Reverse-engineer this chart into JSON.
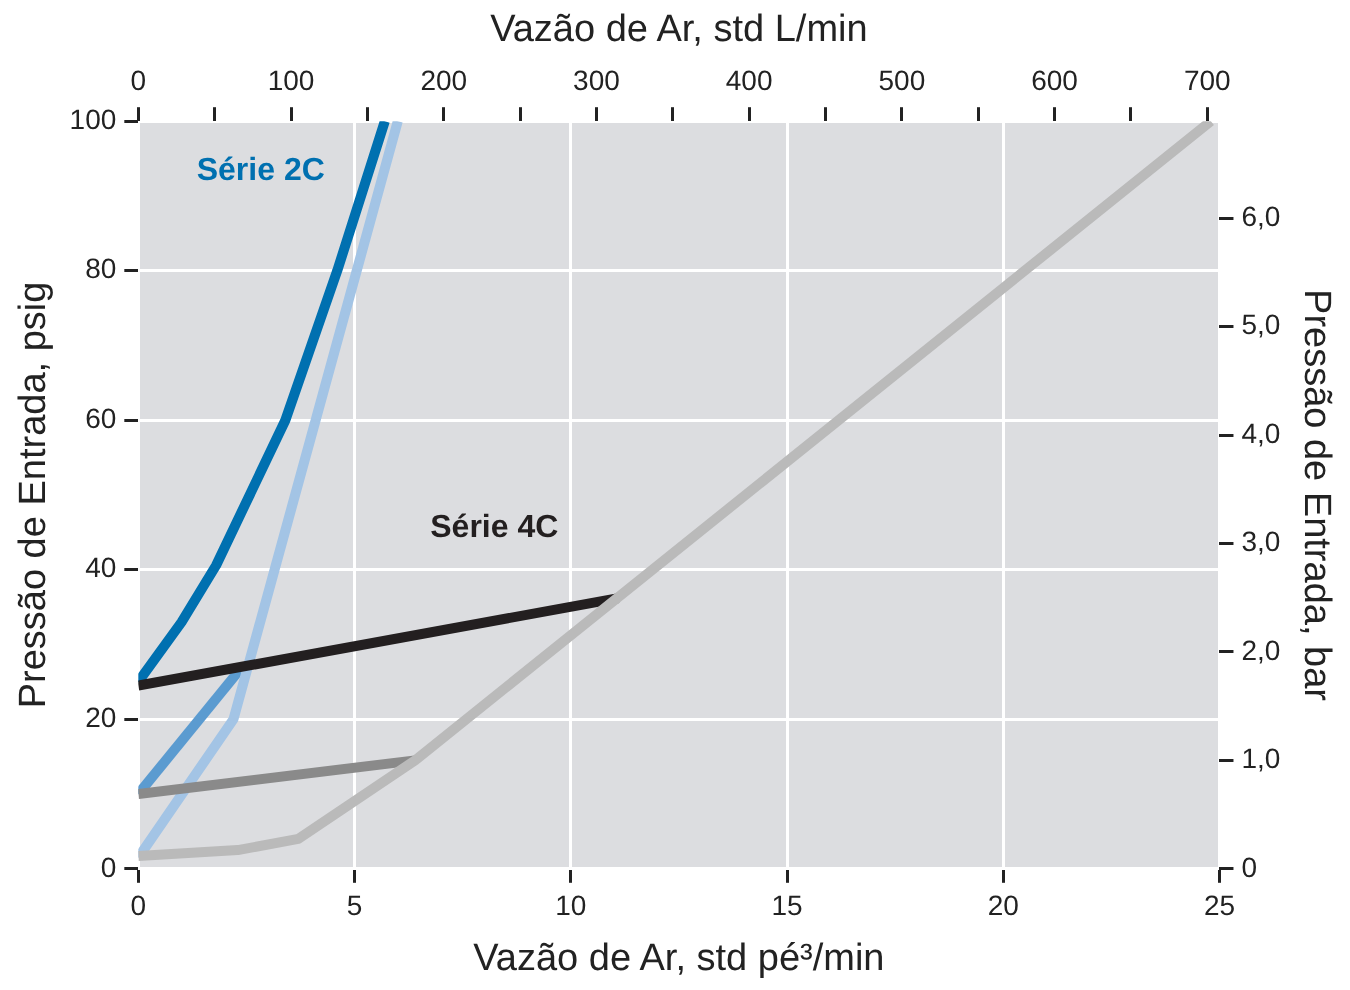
{
  "chart_data": {
    "type": "line",
    "xlabel": "Vazão de Ar, std pé³/min",
    "x2label": "Vazão de Ar, std L/min",
    "ylabel": "Pressão de Entrada, psig",
    "y2label": "Pressão de Entrada, bar",
    "xlim": [
      0,
      25
    ],
    "xticks": [
      0,
      5,
      10,
      15,
      20,
      25
    ],
    "x2lim": [
      0,
      708
    ],
    "x2ticks": [
      0,
      {
        "value": 50,
        "label": null
      },
      100,
      {
        "value": 150,
        "label": null
      },
      200,
      {
        "value": 250,
        "label": null
      },
      300,
      {
        "value": 350,
        "label": null
      },
      400,
      {
        "value": 450,
        "label": null
      },
      500,
      {
        "value": 550,
        "label": null
      },
      600,
      {
        "value": 650,
        "label": null
      },
      700
    ],
    "ylim": [
      0,
      100
    ],
    "yticks": [
      0,
      20,
      40,
      60,
      80,
      100
    ],
    "y2lim": [
      0,
      6.895
    ],
    "y2ticks": [
      0,
      {
        "value": 1,
        "label": "1,0"
      },
      {
        "value": 2,
        "label": "2,0"
      },
      {
        "value": 3,
        "label": "3,0"
      },
      {
        "value": 4,
        "label": "4,0"
      },
      {
        "value": 5,
        "label": "5,0"
      },
      {
        "value": 6,
        "label": "6,0"
      }
    ],
    "grid": true,
    "legend": false,
    "marker": "none",
    "line_style": "solid",
    "series": [
      {
        "color": "#bababa",
        "x": [
          0,
          2.3,
          3.7,
          6.4,
          24.8
        ],
        "values": [
          1.7,
          2.5,
          4,
          14.5,
          100
        ]
      },
      {
        "color": "#8a8a8a",
        "x": [
          0,
          6.4
        ],
        "values": [
          10,
          14.5
        ]
      },
      {
        "name": "Série 4C",
        "color": "#231f20",
        "x": [
          0,
          11.1
        ],
        "values": [
          24.5,
          36.2
        ]
      },
      {
        "color": "#a3c4e5",
        "x": [
          0,
          2.2,
          6.0
        ],
        "values": [
          1.5,
          20,
          100
        ]
      },
      {
        "color": "#5b9bd0",
        "x": [
          0,
          2.4
        ],
        "values": [
          10,
          27
        ]
      },
      {
        "name": "Série 2C",
        "color": "#0070b0",
        "x": [
          0,
          1,
          1.8,
          3.4,
          4.6,
          5.7
        ],
        "values": [
          25,
          33,
          40.6,
          60,
          80,
          100
        ]
      }
    ]
  }
}
